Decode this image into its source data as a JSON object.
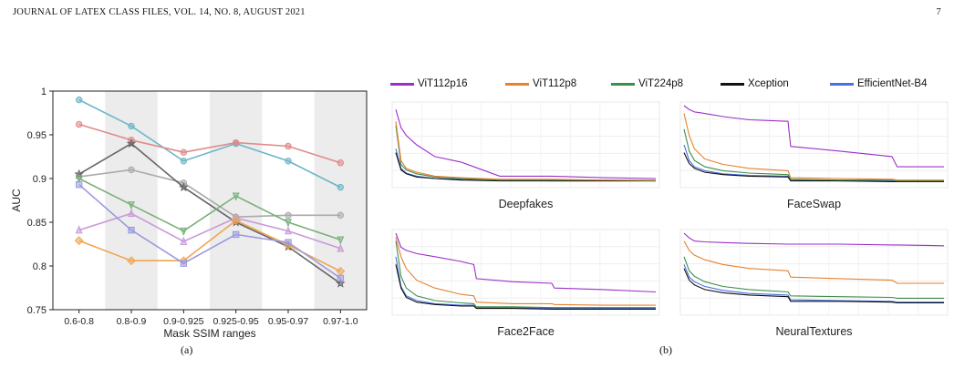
{
  "header": {
    "running_title": "JOURNAL OF LATEX CLASS FILES, VOL. 14, NO. 8, AUGUST 2021",
    "page_number": "7"
  },
  "captions": {
    "a": "(a)",
    "b": "(b)"
  },
  "colors": {
    "vit112p16": "#9b30c8",
    "vit112p8": "#e6822e",
    "vit224p8": "#3e8f4a",
    "xception": "#111111",
    "efficientnet": "#4a6fe0"
  },
  "chart_data": [
    {
      "type": "line",
      "xlabel": "Mask SSIM ranges",
      "ylabel": "AUC",
      "ylim": [
        0.75,
        1.0
      ],
      "yticks": [
        "0.75",
        "0.8",
        "0.85",
        "0.9",
        "0.95",
        "1"
      ],
      "categories": [
        "0.6-0.8",
        "0.8-0.9",
        "0.9-0.925",
        "0.925-0.95",
        "0.95-0.97",
        "0.97-1.0"
      ],
      "grid": "alternating shaded bands",
      "series": [
        {
          "color": "#6bb6c9",
          "marker": "circle",
          "values": [
            0.99,
            0.96,
            0.92,
            0.94,
            0.92,
            0.89
          ]
        },
        {
          "color": "#e08a8a",
          "marker": "circle",
          "values": [
            0.962,
            0.944,
            0.93,
            0.941,
            0.937,
            0.918
          ]
        },
        {
          "color": "#aaaaaa",
          "marker": "circle",
          "values": [
            0.902,
            0.91,
            0.895,
            0.856,
            0.858,
            0.858
          ]
        },
        {
          "color": "#666666",
          "marker": "star",
          "values": [
            0.905,
            0.94,
            0.89,
            0.85,
            0.822,
            0.78
          ]
        },
        {
          "color": "#7ab07a",
          "marker": "triangle-down",
          "values": [
            0.9,
            0.87,
            0.84,
            0.88,
            0.85,
            0.83
          ]
        },
        {
          "color": "#c99ad8",
          "marker": "triangle-up",
          "values": [
            0.841,
            0.86,
            0.828,
            0.855,
            0.84,
            0.82
          ]
        },
        {
          "color": "#f0a550",
          "marker": "diamond",
          "values": [
            0.829,
            0.806,
            0.806,
            0.852,
            0.824,
            0.794
          ]
        },
        {
          "color": "#9a9ae0",
          "marker": "square",
          "values": [
            0.893,
            0.841,
            0.803,
            0.836,
            0.827,
            0.786
          ]
        }
      ]
    },
    {
      "type": "line",
      "legend": [
        "ViT112p16",
        "ViT112p8",
        "ViT224p8",
        "Xception",
        "EfficientNet-B4"
      ],
      "legend_position": "top",
      "panels": [
        {
          "title": "Deepfakes",
          "x": [
            0,
            2,
            4,
            8,
            15,
            25,
            40,
            60,
            80,
            100
          ],
          "series": [
            {
              "name": "ViT112p16",
              "values": [
                0.95,
                0.72,
                0.62,
                0.5,
                0.35,
                0.28,
                0.1,
                0.1,
                0.08,
                0.07
              ]
            },
            {
              "name": "ViT112p8",
              "values": [
                0.8,
                0.3,
                0.2,
                0.15,
                0.1,
                0.08,
                0.06,
                0.06,
                0.05,
                0.05
              ]
            },
            {
              "name": "ViT224p8",
              "values": [
                0.75,
                0.25,
                0.18,
                0.13,
                0.09,
                0.07,
                0.05,
                0.05,
                0.05,
                0.04
              ]
            },
            {
              "name": "Xception",
              "values": [
                0.4,
                0.18,
                0.13,
                0.09,
                0.07,
                0.05,
                0.04,
                0.04,
                0.04,
                0.04
              ]
            },
            {
              "name": "EfficientNet-B4",
              "values": [
                0.45,
                0.2,
                0.14,
                0.1,
                0.07,
                0.06,
                0.05,
                0.04,
                0.04,
                0.04
              ]
            }
          ]
        },
        {
          "title": "FaceSwap",
          "x": [
            0,
            2,
            4,
            8,
            15,
            25,
            40,
            41,
            60,
            80,
            82,
            100
          ],
          "series": [
            {
              "name": "ViT112p16",
              "values": [
                1.0,
                0.95,
                0.92,
                0.9,
                0.86,
                0.82,
                0.8,
                0.48,
                0.42,
                0.35,
                0.22,
                0.22
              ]
            },
            {
              "name": "ViT112p8",
              "values": [
                0.9,
                0.62,
                0.45,
                0.32,
                0.25,
                0.2,
                0.17,
                0.08,
                0.07,
                0.06,
                0.05,
                0.05
              ]
            },
            {
              "name": "ViT224p8",
              "values": [
                0.7,
                0.42,
                0.3,
                0.22,
                0.17,
                0.14,
                0.12,
                0.06,
                0.05,
                0.05,
                0.04,
                0.04
              ]
            },
            {
              "name": "Xception",
              "values": [
                0.4,
                0.26,
                0.2,
                0.15,
                0.12,
                0.1,
                0.09,
                0.04,
                0.04,
                0.03,
                0.03,
                0.03
              ]
            },
            {
              "name": "EfficientNet-B4",
              "values": [
                0.5,
                0.3,
                0.22,
                0.17,
                0.13,
                0.11,
                0.1,
                0.05,
                0.04,
                0.04,
                0.03,
                0.03
              ]
            }
          ]
        },
        {
          "title": "Face2Face",
          "x": [
            0,
            2,
            4,
            8,
            15,
            25,
            30,
            31,
            45,
            60,
            61,
            80,
            100
          ],
          "series": [
            {
              "name": "ViT112p16",
              "values": [
                1.0,
                0.82,
                0.78,
                0.74,
                0.7,
                0.64,
                0.6,
                0.42,
                0.38,
                0.36,
                0.3,
                0.28,
                0.25
              ]
            },
            {
              "name": "ViT112p8",
              "values": [
                0.95,
                0.7,
                0.55,
                0.4,
                0.3,
                0.22,
                0.2,
                0.12,
                0.1,
                0.1,
                0.09,
                0.08,
                0.08
              ]
            },
            {
              "name": "ViT224p8",
              "values": [
                0.9,
                0.45,
                0.3,
                0.2,
                0.14,
                0.11,
                0.1,
                0.06,
                0.06,
                0.05,
                0.05,
                0.05,
                0.05
              ]
            },
            {
              "name": "Xception",
              "values": [
                0.6,
                0.3,
                0.18,
                0.12,
                0.09,
                0.07,
                0.07,
                0.04,
                0.04,
                0.03,
                0.03,
                0.03,
                0.03
              ]
            },
            {
              "name": "EfficientNet-B4",
              "values": [
                0.7,
                0.32,
                0.2,
                0.14,
                0.1,
                0.08,
                0.08,
                0.05,
                0.05,
                0.04,
                0.04,
                0.04,
                0.04
              ]
            }
          ]
        },
        {
          "title": "NeuralTextures",
          "x": [
            0,
            2,
            4,
            8,
            15,
            25,
            40,
            41,
            60,
            80,
            82,
            100
          ],
          "series": [
            {
              "name": "ViT112p16",
              "values": [
                1.0,
                0.94,
                0.9,
                0.89,
                0.88,
                0.87,
                0.86,
                0.86,
                0.86,
                0.85,
                0.85,
                0.84
              ]
            },
            {
              "name": "ViT112p8",
              "values": [
                0.9,
                0.78,
                0.72,
                0.66,
                0.6,
                0.55,
                0.52,
                0.44,
                0.42,
                0.4,
                0.36,
                0.36
              ]
            },
            {
              "name": "ViT224p8",
              "values": [
                0.7,
                0.52,
                0.45,
                0.38,
                0.32,
                0.28,
                0.25,
                0.2,
                0.19,
                0.18,
                0.17,
                0.17
              ]
            },
            {
              "name": "Xception",
              "values": [
                0.55,
                0.4,
                0.34,
                0.28,
                0.24,
                0.21,
                0.19,
                0.13,
                0.13,
                0.12,
                0.11,
                0.11
              ]
            },
            {
              "name": "EfficientNet-B4",
              "values": [
                0.6,
                0.44,
                0.38,
                0.32,
                0.27,
                0.23,
                0.21,
                0.15,
                0.14,
                0.13,
                0.12,
                0.12
              ]
            }
          ]
        }
      ]
    }
  ]
}
